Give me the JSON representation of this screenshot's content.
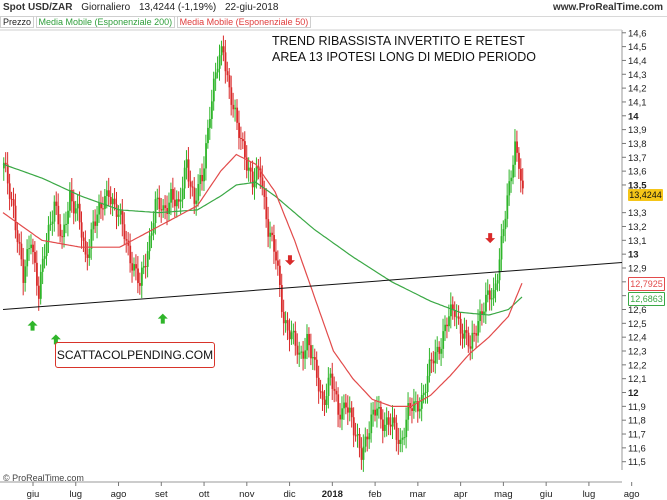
{
  "header": {
    "symbol": "Spot USD/ZAR",
    "period": "Giornaliero",
    "quote": "13,4244 (-1,19%)",
    "date": "22-giu-2018",
    "site": "www.ProRealTime.com"
  },
  "legend": {
    "price": "Prezzo",
    "ma200": "Media Mobile (Esponenziale 200)",
    "ma50": "Media Mobile (Esponenziale 50)"
  },
  "annotation": {
    "line1": "TREND RIBASSISTA INVERTITO E RETEST",
    "line2": "AREA 13 IPOTESI LONG DI MEDIO PERIODO"
  },
  "promo": "SCATTACOLPENDING.COM",
  "credit": "© ProRealTime.com",
  "colors": {
    "up": "#2fb52a",
    "down": "#d92a2a",
    "ma200": "#3aa845",
    "ma50": "#e24b4b",
    "trendline": "#111111",
    "grid": "#e6e6e6"
  },
  "chart_data": {
    "type": "candlestick",
    "y_ticks": [
      "14,6",
      "14,5",
      "14,4",
      "14,3",
      "14,2",
      "14,1",
      "14",
      "13,9",
      "13,8",
      "13,7",
      "13,6",
      "13,5",
      "13,3",
      "13,2",
      "13,1",
      "13",
      "12,9",
      "12,8",
      "12,7",
      "12,6",
      "12,5",
      "12,4",
      "12,3",
      "12,2",
      "12,1",
      "12",
      "11,9",
      "11,8",
      "11,7",
      "11,6",
      "11,5"
    ],
    "ylim": [
      11.44,
      14.62
    ],
    "x_labels": [
      "giu",
      "lug",
      "ago",
      "set",
      "ott",
      "nov",
      "dic",
      "2018",
      "feb",
      "mar",
      "apr",
      "mag",
      "giu",
      "lug",
      "ago"
    ],
    "x_label_idx": [
      0,
      22,
      44,
      66,
      88,
      110,
      132,
      154,
      176,
      198,
      220,
      242,
      264,
      286,
      308
    ],
    "n_slots": 320,
    "last_price_label": "13,4244",
    "ma50_label": "12,7925",
    "ma200_label": "12,6863",
    "last_price": 13.4244,
    "ma50_last": 12.7925,
    "ma200_last": 12.6863,
    "trendline": {
      "start": [
        0,
        12.6
      ],
      "end": [
        330,
        12.94
      ]
    },
    "up_arrows": [
      [
        8,
        12.52
      ],
      [
        20,
        12.42
      ],
      [
        75,
        12.57
      ]
    ],
    "down_arrows": [
      [
        143,
        12.92
      ],
      [
        246,
        13.08
      ]
    ],
    "anchors": [
      [
        0,
        13.62
      ],
      [
        5,
        13.35
      ],
      [
        10,
        12.8
      ],
      [
        14,
        13.15
      ],
      [
        18,
        12.7
      ],
      [
        22,
        13.1
      ],
      [
        26,
        13.4
      ],
      [
        30,
        13.05
      ],
      [
        34,
        13.45
      ],
      [
        38,
        13.3
      ],
      [
        42,
        12.95
      ],
      [
        46,
        13.25
      ],
      [
        50,
        13.3
      ],
      [
        54,
        13.48
      ],
      [
        58,
        13.3
      ],
      [
        62,
        13.15
      ],
      [
        66,
        12.95
      ],
      [
        70,
        12.75
      ],
      [
        74,
        13.05
      ],
      [
        78,
        13.35
      ],
      [
        82,
        13.3
      ],
      [
        86,
        13.45
      ],
      [
        90,
        13.3
      ],
      [
        94,
        13.7
      ],
      [
        98,
        13.35
      ],
      [
        102,
        13.55
      ],
      [
        106,
        14.05
      ],
      [
        110,
        14.35
      ],
      [
        113,
        14.5
      ],
      [
        116,
        14.2
      ],
      [
        120,
        13.9
      ],
      [
        124,
        13.75
      ],
      [
        128,
        13.5
      ],
      [
        132,
        13.6
      ],
      [
        136,
        13.2
      ],
      [
        140,
        12.95
      ],
      [
        144,
        12.55
      ],
      [
        148,
        12.4
      ],
      [
        152,
        12.25
      ],
      [
        156,
        12.4
      ],
      [
        160,
        12.15
      ],
      [
        164,
        11.95
      ],
      [
        168,
        12.1
      ],
      [
        172,
        11.85
      ],
      [
        176,
        11.95
      ],
      [
        180,
        11.7
      ],
      [
        184,
        11.6
      ],
      [
        188,
        11.72
      ],
      [
        192,
        11.9
      ],
      [
        196,
        11.78
      ],
      [
        200,
        11.75
      ],
      [
        204,
        11.65
      ],
      [
        208,
        11.85
      ],
      [
        212,
        11.9
      ],
      [
        216,
        12.0
      ],
      [
        220,
        12.2
      ],
      [
        224,
        12.35
      ],
      [
        228,
        12.5
      ],
      [
        232,
        12.6
      ],
      [
        236,
        12.45
      ],
      [
        240,
        12.3
      ],
      [
        244,
        12.55
      ],
      [
        248,
        12.65
      ],
      [
        252,
        12.7
      ],
      [
        256,
        13.1
      ],
      [
        260,
        13.45
      ],
      [
        263,
        13.8
      ],
      [
        265,
        13.7
      ],
      [
        267,
        13.42
      ]
    ],
    "ma200_anchors": [
      [
        0,
        13.65
      ],
      [
        20,
        13.55
      ],
      [
        40,
        13.42
      ],
      [
        60,
        13.32
      ],
      [
        80,
        13.3
      ],
      [
        100,
        13.32
      ],
      [
        112,
        13.42
      ],
      [
        120,
        13.5
      ],
      [
        130,
        13.52
      ],
      [
        140,
        13.42
      ],
      [
        160,
        13.18
      ],
      [
        180,
        12.98
      ],
      [
        200,
        12.8
      ],
      [
        220,
        12.66
      ],
      [
        235,
        12.58
      ],
      [
        250,
        12.56
      ],
      [
        260,
        12.6
      ],
      [
        267,
        12.69
      ]
    ],
    "ma50_anchors": [
      [
        0,
        13.3
      ],
      [
        20,
        13.1
      ],
      [
        40,
        13.05
      ],
      [
        60,
        13.05
      ],
      [
        80,
        13.2
      ],
      [
        100,
        13.35
      ],
      [
        112,
        13.6
      ],
      [
        120,
        13.72
      ],
      [
        130,
        13.65
      ],
      [
        140,
        13.45
      ],
      [
        150,
        13.1
      ],
      [
        160,
        12.7
      ],
      [
        170,
        12.3
      ],
      [
        180,
        12.1
      ],
      [
        190,
        11.95
      ],
      [
        200,
        11.9
      ],
      [
        210,
        11.9
      ],
      [
        220,
        11.98
      ],
      [
        230,
        12.12
      ],
      [
        240,
        12.28
      ],
      [
        250,
        12.4
      ],
      [
        260,
        12.55
      ],
      [
        267,
        12.79
      ]
    ]
  }
}
